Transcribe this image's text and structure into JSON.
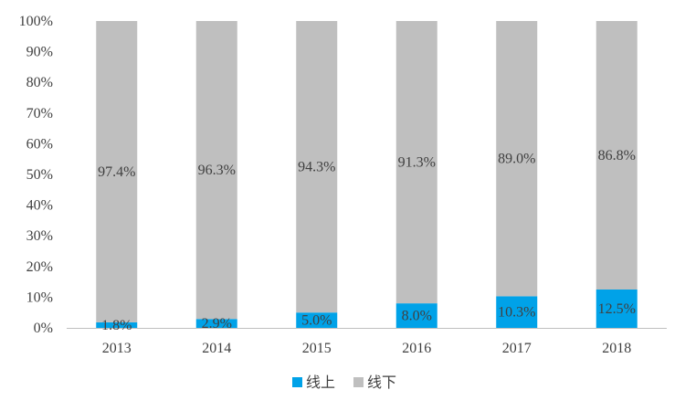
{
  "colors": {
    "online": "#00a2e8",
    "offline": "#bfbfbf",
    "axis": "#bfbfbf",
    "text": "#404040"
  },
  "chart_data": {
    "type": "bar",
    "stacked": true,
    "percent": true,
    "categories": [
      "2013",
      "2014",
      "2015",
      "2016",
      "2017",
      "2018"
    ],
    "series": [
      {
        "name": "线上",
        "values": [
          1.8,
          2.9,
          5.0,
          8.0,
          10.3,
          12.5
        ],
        "labels": [
          "1.8%",
          "2.9%",
          "5.0%",
          "8.0%",
          "10.3%",
          "12.5%"
        ]
      },
      {
        "name": "线下",
        "values": [
          97.4,
          96.3,
          94.3,
          91.3,
          89.0,
          86.8
        ],
        "labels": [
          "97.4%",
          "96.3%",
          "94.3%",
          "91.3%",
          "89.0%",
          "86.8%"
        ]
      }
    ],
    "ylim": [
      0,
      100
    ],
    "y_ticks": [
      "0%",
      "10%",
      "20%",
      "30%",
      "40%",
      "50%",
      "60%",
      "70%",
      "80%",
      "90%",
      "100%"
    ],
    "grid": false,
    "legend_position": "bottom"
  }
}
